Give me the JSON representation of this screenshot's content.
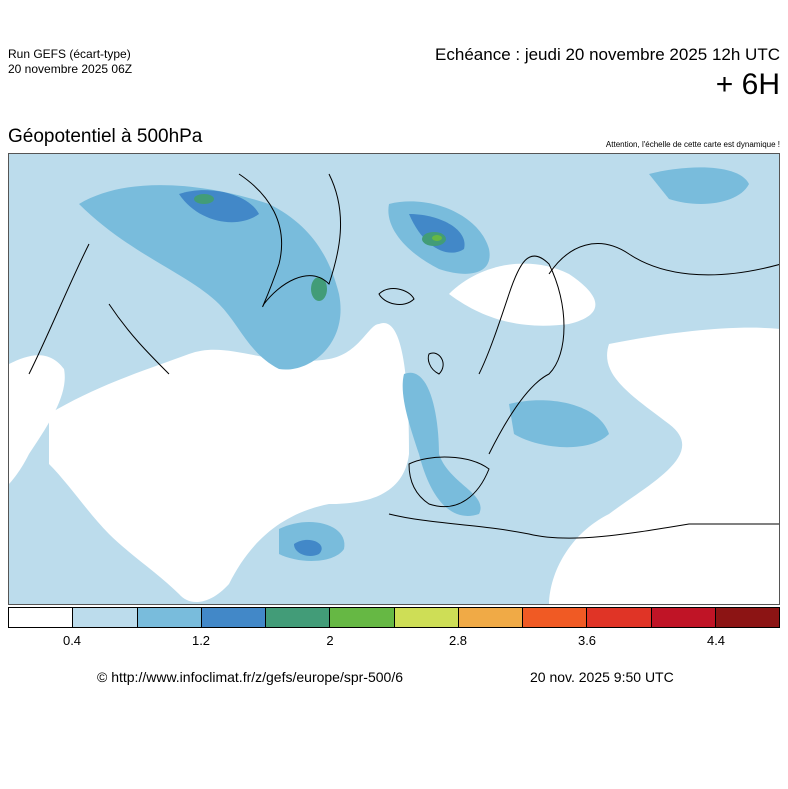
{
  "header": {
    "run_line1": "Run GEFS (écart-type)",
    "run_line2": "20 novembre 2025 06Z",
    "echeance": "Echéance : jeudi 20 novembre 2025 12h UTC",
    "lead_time": "+ 6H",
    "title": "Géopotentiel à 500hPa",
    "warning": "Attention, l'échelle de cette carte est dynamique !"
  },
  "legend": {
    "colors": [
      "#ffffff",
      "#bcdcec",
      "#79bcdc",
      "#4288c8",
      "#429c78",
      "#66b844",
      "#cede56",
      "#f0aa46",
      "#f05a24",
      "#e03426",
      "#c01426",
      "#8c1414"
    ],
    "ticks": [
      "0.4",
      "1.2",
      "2",
      "2.8",
      "3.6",
      "4.4"
    ]
  },
  "footer": {
    "credit": "© http://www.infoclimat.fr/z/gefs/europe/spr-500/6",
    "timestamp": "20 nov. 2025  9:50 UTC"
  }
}
